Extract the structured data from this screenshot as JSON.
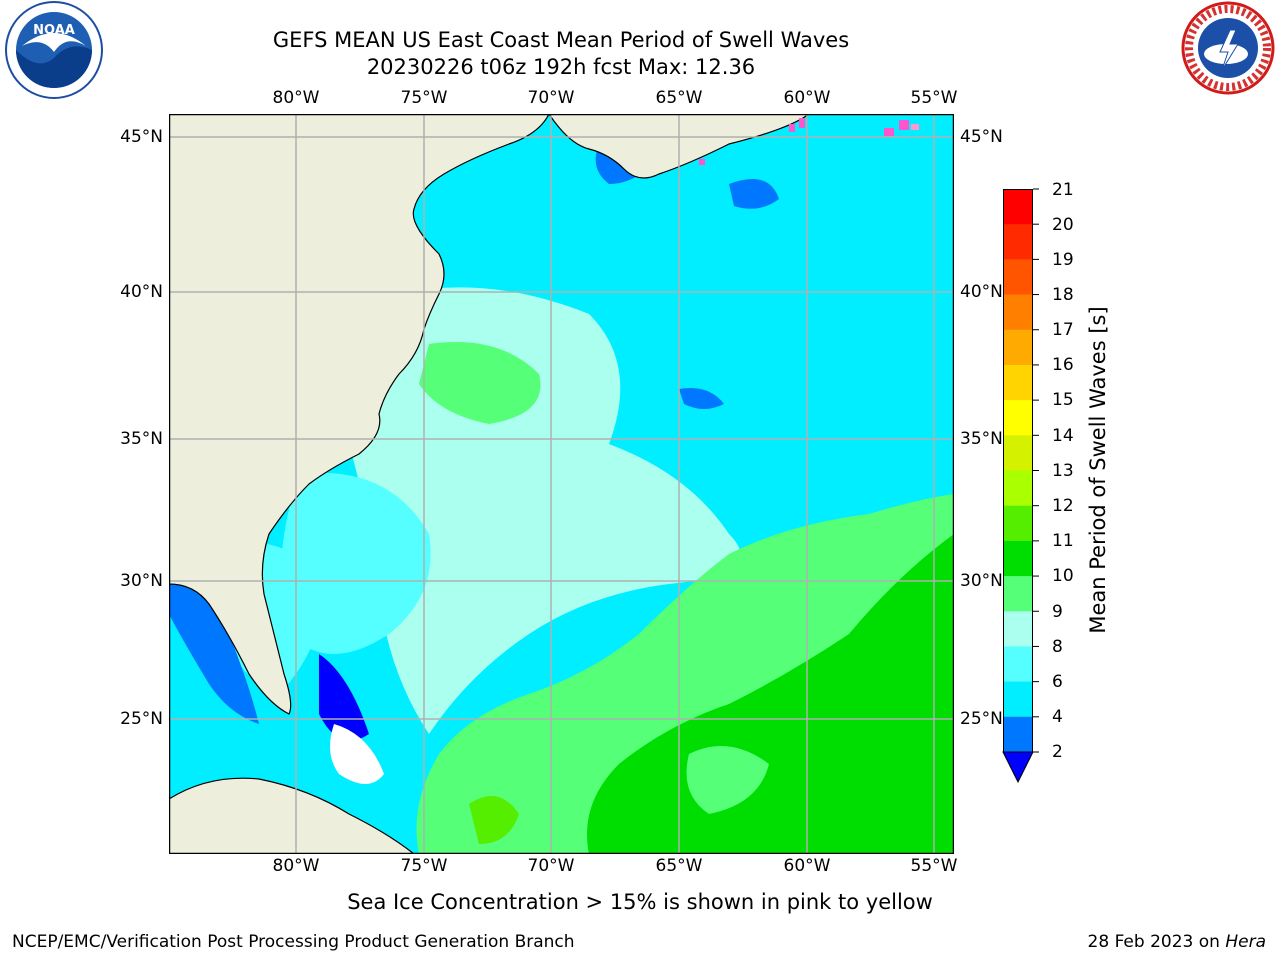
{
  "header": {
    "title_line1": "GEFS MEAN US East Coast Mean Period of Swell Waves",
    "title_line2": "20230226 t06z 192h fcst   Max: 12.36"
  },
  "axes": {
    "longitude_labels": [
      "80°W",
      "75°W",
      "70°W",
      "65°W",
      "60°W",
      "55°W"
    ],
    "latitude_labels": [
      "45°N",
      "40°N",
      "35°N",
      "30°N",
      "25°N"
    ],
    "latitude_labels_right": [
      "45°N",
      "40°N",
      "35°N",
      "30°N",
      "25°N"
    ]
  },
  "colorbar": {
    "title": "Mean Period of Swell Waves [s]",
    "levels": [
      "21",
      "20",
      "19",
      "18",
      "17",
      "16",
      "15",
      "14",
      "13",
      "12",
      "11",
      "10",
      "9",
      "8",
      "6",
      "4",
      "2"
    ],
    "colors": [
      "#ff0000",
      "#ff2a00",
      "#ff5500",
      "#ff8000",
      "#ffaa00",
      "#ffd400",
      "#ffff00",
      "#d4f200",
      "#aaff00",
      "#55ee00",
      "#00dd00",
      "#55ff77",
      "#aaffee",
      "#55ffff",
      "#00eeff",
      "#0077ff",
      "#0000ff"
    ],
    "extend": "min"
  },
  "map_colors": {
    "land": "#eeeedd",
    "ocean_low": "#00eeff",
    "ocean_mid": "#55ffff",
    "ocean_light": "#aaffee",
    "green_light": "#55ff77",
    "green": "#00dd00",
    "deep": "#0000ff",
    "blue": "#0077ff",
    "ice": "#ff55cc",
    "grid": "#b0b0b0"
  },
  "footer": {
    "note": "Sea Ice Concentration > 15% is shown in pink to yellow",
    "credit": "NCEP/EMC/Verification Post Processing Product Generation Branch",
    "date": "28 Feb 2023 on ",
    "host": "Hera"
  },
  "logos": {
    "left": "noaa-logo",
    "left_text": "NOAA",
    "right": "nws-logo",
    "right_text": "NATIONAL WEATHER SERVICE"
  }
}
